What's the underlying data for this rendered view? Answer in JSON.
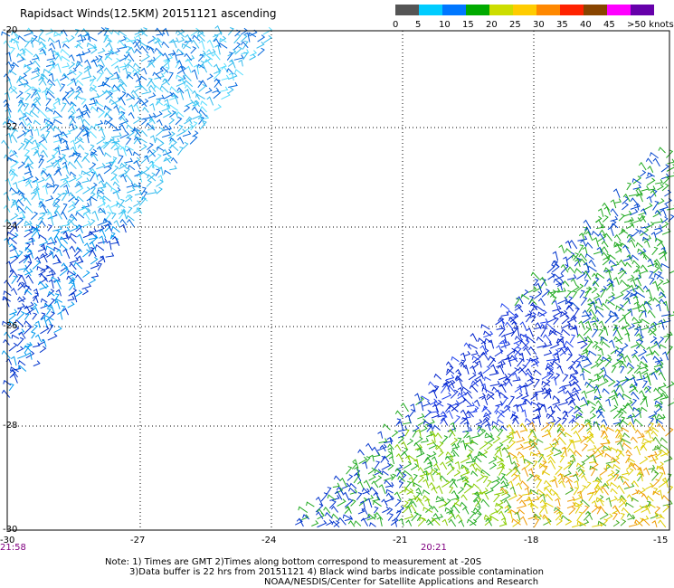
{
  "title": "Rapidsact Winds(12.5KM) 20151121 ascending",
  "colorbar": {
    "labels": [
      "0",
      "5",
      "10",
      "15",
      "20",
      "25",
      "30",
      "35",
      "40",
      "45",
      ">50 knots"
    ],
    "colors": [
      "#555555",
      "#00ccff",
      "#0077ff",
      "#00aa00",
      "#ccdd00",
      "#ffcc00",
      "#ff8800",
      "#ff2200",
      "#884400",
      "#ff00ff",
      "#6600aa"
    ]
  },
  "lat_labels": [
    "-20",
    "-22",
    "-24",
    "-26",
    "-28",
    "-30"
  ],
  "lon_labels": [
    "-30",
    "-27",
    "-24",
    "-21",
    "-18",
    "-15"
  ],
  "time_labels": [
    "21:58",
    "20:21"
  ],
  "notes": {
    "line1": "Note: 1) Times are GMT 2)Times along bottom correspond to measurement at -20S",
    "line2": "3)Data buffer is 22 hrs from 20151121 4) Black wind barbs indicate possible contamination"
  },
  "credit": "NOAA/NESDIS/Center for Satellite Applications and Research"
}
